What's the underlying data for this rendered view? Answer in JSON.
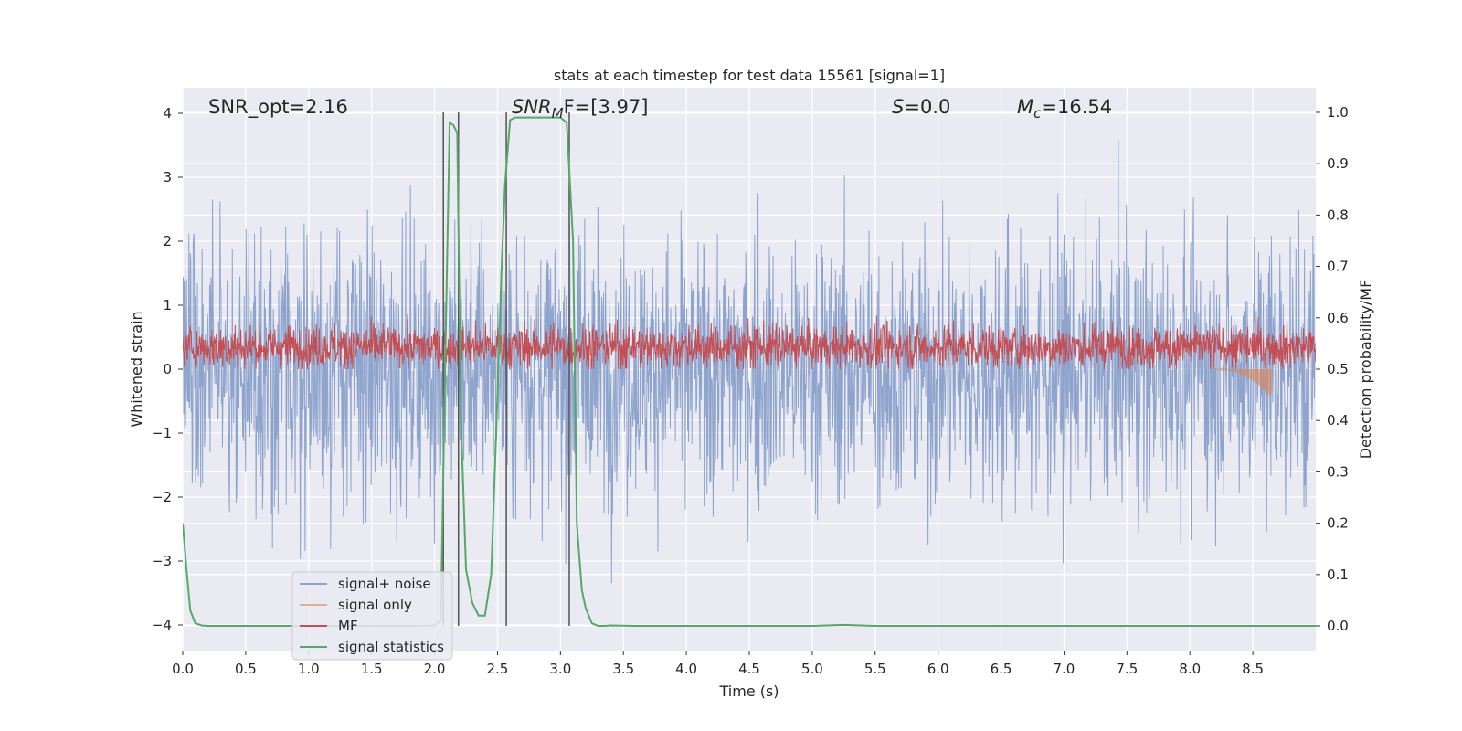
{
  "chart_data": {
    "type": "line",
    "title": "stats at each timestep for test data 15561 [signal=1]",
    "xlabel": "Time (s)",
    "ylabel_left": "Whitened strain",
    "ylabel_right": "Detection probability/MF",
    "xlim": [
      0.0,
      9.0
    ],
    "ylim_left": [
      -4.4,
      4.4
    ],
    "ylim_right": [
      -0.048,
      1.048
    ],
    "x_ticks": [
      "0.0",
      "0.5",
      "1.0",
      "1.5",
      "2.0",
      "2.5",
      "3.0",
      "3.5",
      "4.0",
      "4.5",
      "5.0",
      "5.5",
      "6.0",
      "6.5",
      "7.0",
      "7.5",
      "8.0",
      "8.5"
    ],
    "y_ticks_left": [
      "−4",
      "−3",
      "−2",
      "−1",
      "0",
      "1",
      "2",
      "3",
      "4"
    ],
    "y_ticks_right": [
      "0.0",
      "0.1",
      "0.2",
      "0.3",
      "0.4",
      "0.5",
      "0.6",
      "0.7",
      "0.8",
      "0.9",
      "1.0"
    ],
    "annotations": {
      "snr_opt": "SNR_opt=2.16",
      "snr_mf_sym": "SNR",
      "snr_mf_sub": "M",
      "snr_mf_rest": "F=[3.97]",
      "s_sym": "S",
      "s_rest": "=0.0",
      "mc_sym": "M",
      "mc_sub": "c",
      "mc_rest": "=16.54"
    },
    "vertical_lines_s": [
      2.07,
      2.19,
      2.57,
      3.07
    ],
    "series": [
      {
        "name": "signal+ noise",
        "color": "#8ea4cd",
        "axis": "left",
        "kind": "noise",
        "amplitude_sigma": 1.0
      },
      {
        "name": "signal only",
        "color": "#dd8452",
        "axis": "left",
        "kind": "chirp",
        "start": 8.2,
        "end": 8.65,
        "peak": -0.45
      },
      {
        "name": "MF",
        "color": "#c44e52",
        "axis": "left",
        "kind": "mf",
        "mean": 0.35,
        "range": [
          0.0,
          1.0
        ]
      },
      {
        "name": "signal statistics",
        "color": "#55a868",
        "axis": "right",
        "x": [
          0.0,
          0.03,
          0.06,
          0.1,
          0.15,
          0.2,
          0.4,
          1.0,
          1.5,
          1.9,
          2.0,
          2.05,
          2.08,
          2.12,
          2.15,
          2.18,
          2.21,
          2.25,
          2.3,
          2.35,
          2.4,
          2.45,
          2.5,
          2.53,
          2.56,
          2.6,
          2.64,
          2.7,
          2.8,
          2.9,
          3.0,
          3.05,
          3.1,
          3.13,
          3.17,
          3.2,
          3.25,
          3.3,
          3.35,
          3.4,
          3.6,
          4.0,
          5.0,
          5.25,
          5.5,
          6.0,
          7.0,
          8.0,
          9.0
        ],
        "y": [
          0.2,
          0.11,
          0.03,
          0.005,
          0.001,
          0.0,
          0.0,
          0.0,
          0.0,
          0.0,
          0.001,
          0.01,
          0.45,
          0.98,
          0.975,
          0.96,
          0.4,
          0.11,
          0.045,
          0.02,
          0.02,
          0.1,
          0.45,
          0.68,
          0.86,
          0.985,
          0.99,
          0.99,
          0.99,
          0.99,
          0.99,
          0.98,
          0.75,
          0.2,
          0.07,
          0.035,
          0.005,
          0.0,
          0.0,
          0.001,
          0.0,
          0.0,
          0.0,
          0.002,
          0.0,
          0.0,
          0.0,
          0.0,
          0.0
        ]
      }
    ],
    "legend": {
      "position": "lower-left",
      "entries": [
        "signal+ noise",
        "signal only",
        "MF",
        "signal statistics"
      ]
    }
  },
  "colors": {
    "background": "#eaeaf2",
    "grid": "#ffffff",
    "vline": "#555555"
  }
}
